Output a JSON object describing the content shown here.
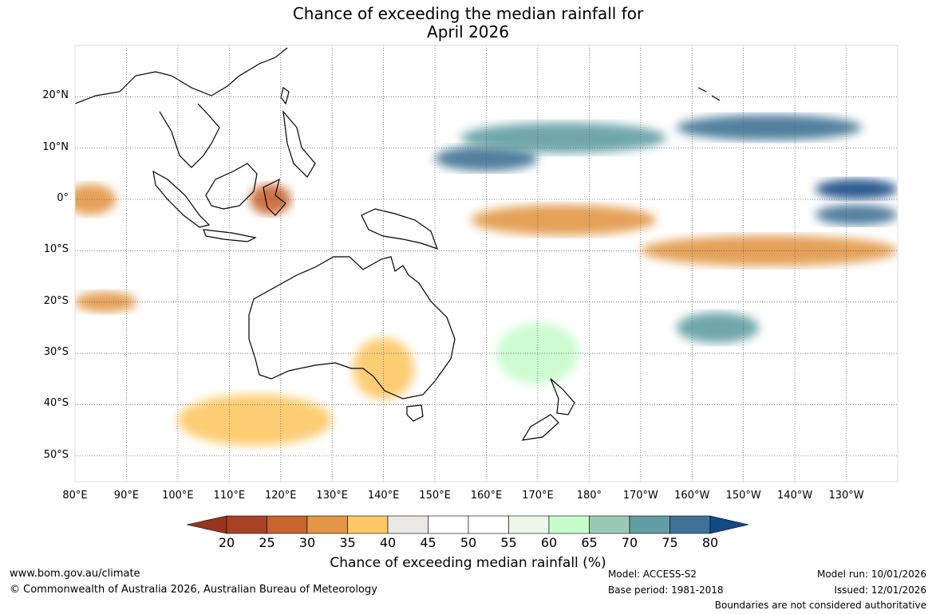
{
  "title": {
    "line1": "Chance of exceeding the median rainfall for",
    "line2": "April 2026"
  },
  "map": {
    "lon_labels": [
      "80°E",
      "90°E",
      "100°E",
      "110°E",
      "120°E",
      "130°E",
      "140°E",
      "150°E",
      "160°E",
      "170°E",
      "180°",
      "170°W",
      "160°W",
      "150°W",
      "140°W",
      "130°W"
    ],
    "lat_labels": [
      "20°N",
      "10°N",
      "0°",
      "10°S",
      "20°S",
      "30°S",
      "40°S",
      "50°S"
    ],
    "lon_range": [
      80,
      240
    ],
    "lat_range": [
      30,
      -55
    ],
    "regions": [
      {
        "level": 75,
        "lon": 160,
        "lat": 8,
        "rx": 10,
        "ry": 2.5
      },
      {
        "level": 70,
        "lon": 175,
        "lat": 12,
        "rx": 20,
        "ry": 3
      },
      {
        "level": 75,
        "lon": 215,
        "lat": 14,
        "rx": 18,
        "ry": 2.5
      },
      {
        "level": 80,
        "lon": 232,
        "lat": 2,
        "rx": 8,
        "ry": 2
      },
      {
        "level": 75,
        "lon": 232,
        "lat": -3,
        "rx": 8,
        "ry": 2
      },
      {
        "level": 30,
        "lon": 175,
        "lat": -4,
        "rx": 18,
        "ry": 3
      },
      {
        "level": 30,
        "lon": 215,
        "lat": -10,
        "rx": 25,
        "ry": 3
      },
      {
        "level": 25,
        "lon": 118,
        "lat": 0,
        "rx": 4,
        "ry": 3
      },
      {
        "level": 30,
        "lon": 83,
        "lat": 0,
        "rx": 5,
        "ry": 3
      },
      {
        "level": 35,
        "lon": 115,
        "lat": -43,
        "rx": 15,
        "ry": 5
      },
      {
        "level": 35,
        "lon": 140,
        "lat": -33,
        "rx": 6,
        "ry": 6
      },
      {
        "level": 30,
        "lon": 86,
        "lat": -20,
        "rx": 6,
        "ry": 2
      },
      {
        "level": 70,
        "lon": 205,
        "lat": -25,
        "rx": 8,
        "ry": 3
      },
      {
        "level": 60,
        "lon": 170,
        "lat": -30,
        "rx": 8,
        "ry": 6
      }
    ]
  },
  "colorbar": {
    "ticks": [
      "20",
      "25",
      "30",
      "35",
      "40",
      "45",
      "50",
      "55",
      "60",
      "65",
      "70",
      "75",
      "80"
    ],
    "colors": [
      "#a84126",
      "#c9642f",
      "#e29747",
      "#fdc865",
      "#eae8e2",
      "#ffffff",
      "#ffffff",
      "#eaf7ea",
      "#c7fccb",
      "#9cc9b4",
      "#629ea3",
      "#3f7294"
    ],
    "under_color": "#96361f",
    "over_color": "#134a85",
    "label": "Chance of exceeding median rainfall (%)"
  },
  "footer": {
    "website": "www.bom.gov.au/climate",
    "copyright": "© Commonwealth of Australia 2026, Australian Bureau of Meteorology",
    "model": "Model: ACCESS-S2",
    "base_period": "Base period: 1981-2018",
    "model_run": "Model run: 10/01/2026",
    "issued": "Issued: 12/01/2026",
    "boundaries": "Boundaries are not considered authoritative"
  }
}
